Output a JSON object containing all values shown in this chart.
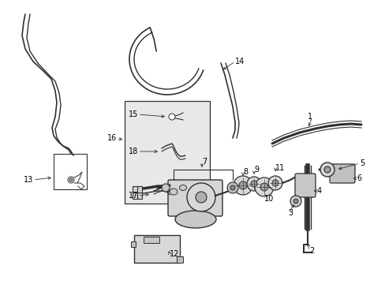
{
  "bg_color": "#ffffff",
  "line_color": "#303030",
  "label_color": "#000000",
  "inset_bg": "#e8e8e8"
}
